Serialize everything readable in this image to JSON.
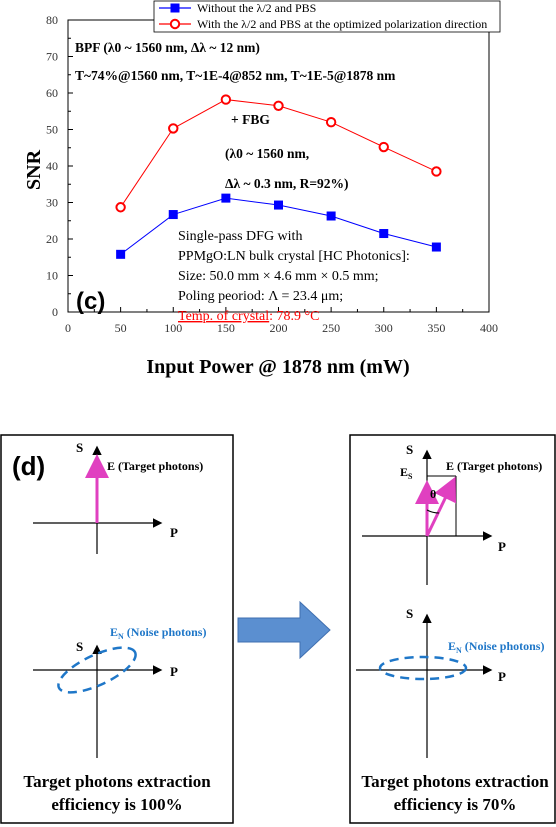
{
  "chart_data": {
    "type": "line",
    "panel_label": "(c)",
    "xlabel": "Input Power @ 1878 nm (mW)",
    "ylabel": "SNR",
    "xlim": [
      0,
      400
    ],
    "ylim": [
      0,
      80
    ],
    "x_ticks": [
      "0",
      "50",
      "100",
      "150",
      "200",
      "250",
      "300",
      "350",
      "400"
    ],
    "y_ticks": [
      "0",
      "10",
      "20",
      "30",
      "40",
      "50",
      "60",
      "70",
      "80"
    ],
    "grid": false,
    "legend_position": "top",
    "series": [
      {
        "name": "Without the λ/2 and PBS",
        "color": "#0000ff",
        "marker": "filled-square",
        "x": [
          50,
          100,
          150,
          200,
          250,
          300,
          350
        ],
        "y": [
          15.8,
          26.7,
          31.2,
          29.3,
          26.3,
          21.5,
          17.8
        ]
      },
      {
        "name": "With the λ/2 and PBS at the optimized polarization direction",
        "color": "#ff0000",
        "marker": "open-circle",
        "x": [
          50,
          100,
          150,
          200,
          250,
          300,
          350
        ],
        "y": [
          28.7,
          50.3,
          58.2,
          56.5,
          52.0,
          45.2,
          38.5
        ]
      }
    ],
    "annotations": {
      "bpf_line1": "BPF (λ0 ~ 1560 nm, Δλ ~ 12 nm)",
      "bpf_line2": "T~74%@1560 nm, T~1E-4@852 nm, T~1E-5@1878 nm",
      "fbg_line1": "+ FBG",
      "fbg_line2": "(λ0 ~ 1560 nm,",
      "fbg_line3": "Δλ ~ 0.3 nm, R=92%)",
      "crystal_line1": "Single-pass DFG with",
      "crystal_line2": "PPMgO:LN bulk crystal [HC Photonics]:",
      "crystal_line3": "Size: 50.0 mm × 4.6 mm × 0.5 mm;",
      "crystal_line4": "Poling peoriod:  Λ = 23.4  μm;",
      "crystal_temp_label": "Temp. of crystal",
      "crystal_temp_value": ": 78.9 °C"
    }
  },
  "diagram": {
    "panel_label": "(d)",
    "left": {
      "s_axis_top": "S",
      "p_axis_top": "P",
      "target_label": "E (Target photons)",
      "s_axis_bottom": "S",
      "p_axis_bottom": "P",
      "noise_label": "E",
      "noise_sub": "N",
      "noise_suffix": " (Noise photons)",
      "caption_line1": "Target photons extraction",
      "caption_line2": "efficiency is 100%"
    },
    "right": {
      "s_axis_top": "S",
      "p_axis_top": "P",
      "es_label": "E",
      "es_sub": "S",
      "theta_label": "θ",
      "target_label": "E (Target photons)",
      "s_axis_bottom": "S",
      "p_axis_bottom": "P",
      "noise_label": "E",
      "noise_sub": "N",
      "noise_suffix": " (Noise photons)",
      "caption_line1": "Target photons extraction",
      "caption_line2": "efficiency is 70%"
    },
    "colors": {
      "target_arrow": "#e040c0",
      "noise": "#1f77c8",
      "arrow_fill": "#5b8fd0"
    }
  }
}
